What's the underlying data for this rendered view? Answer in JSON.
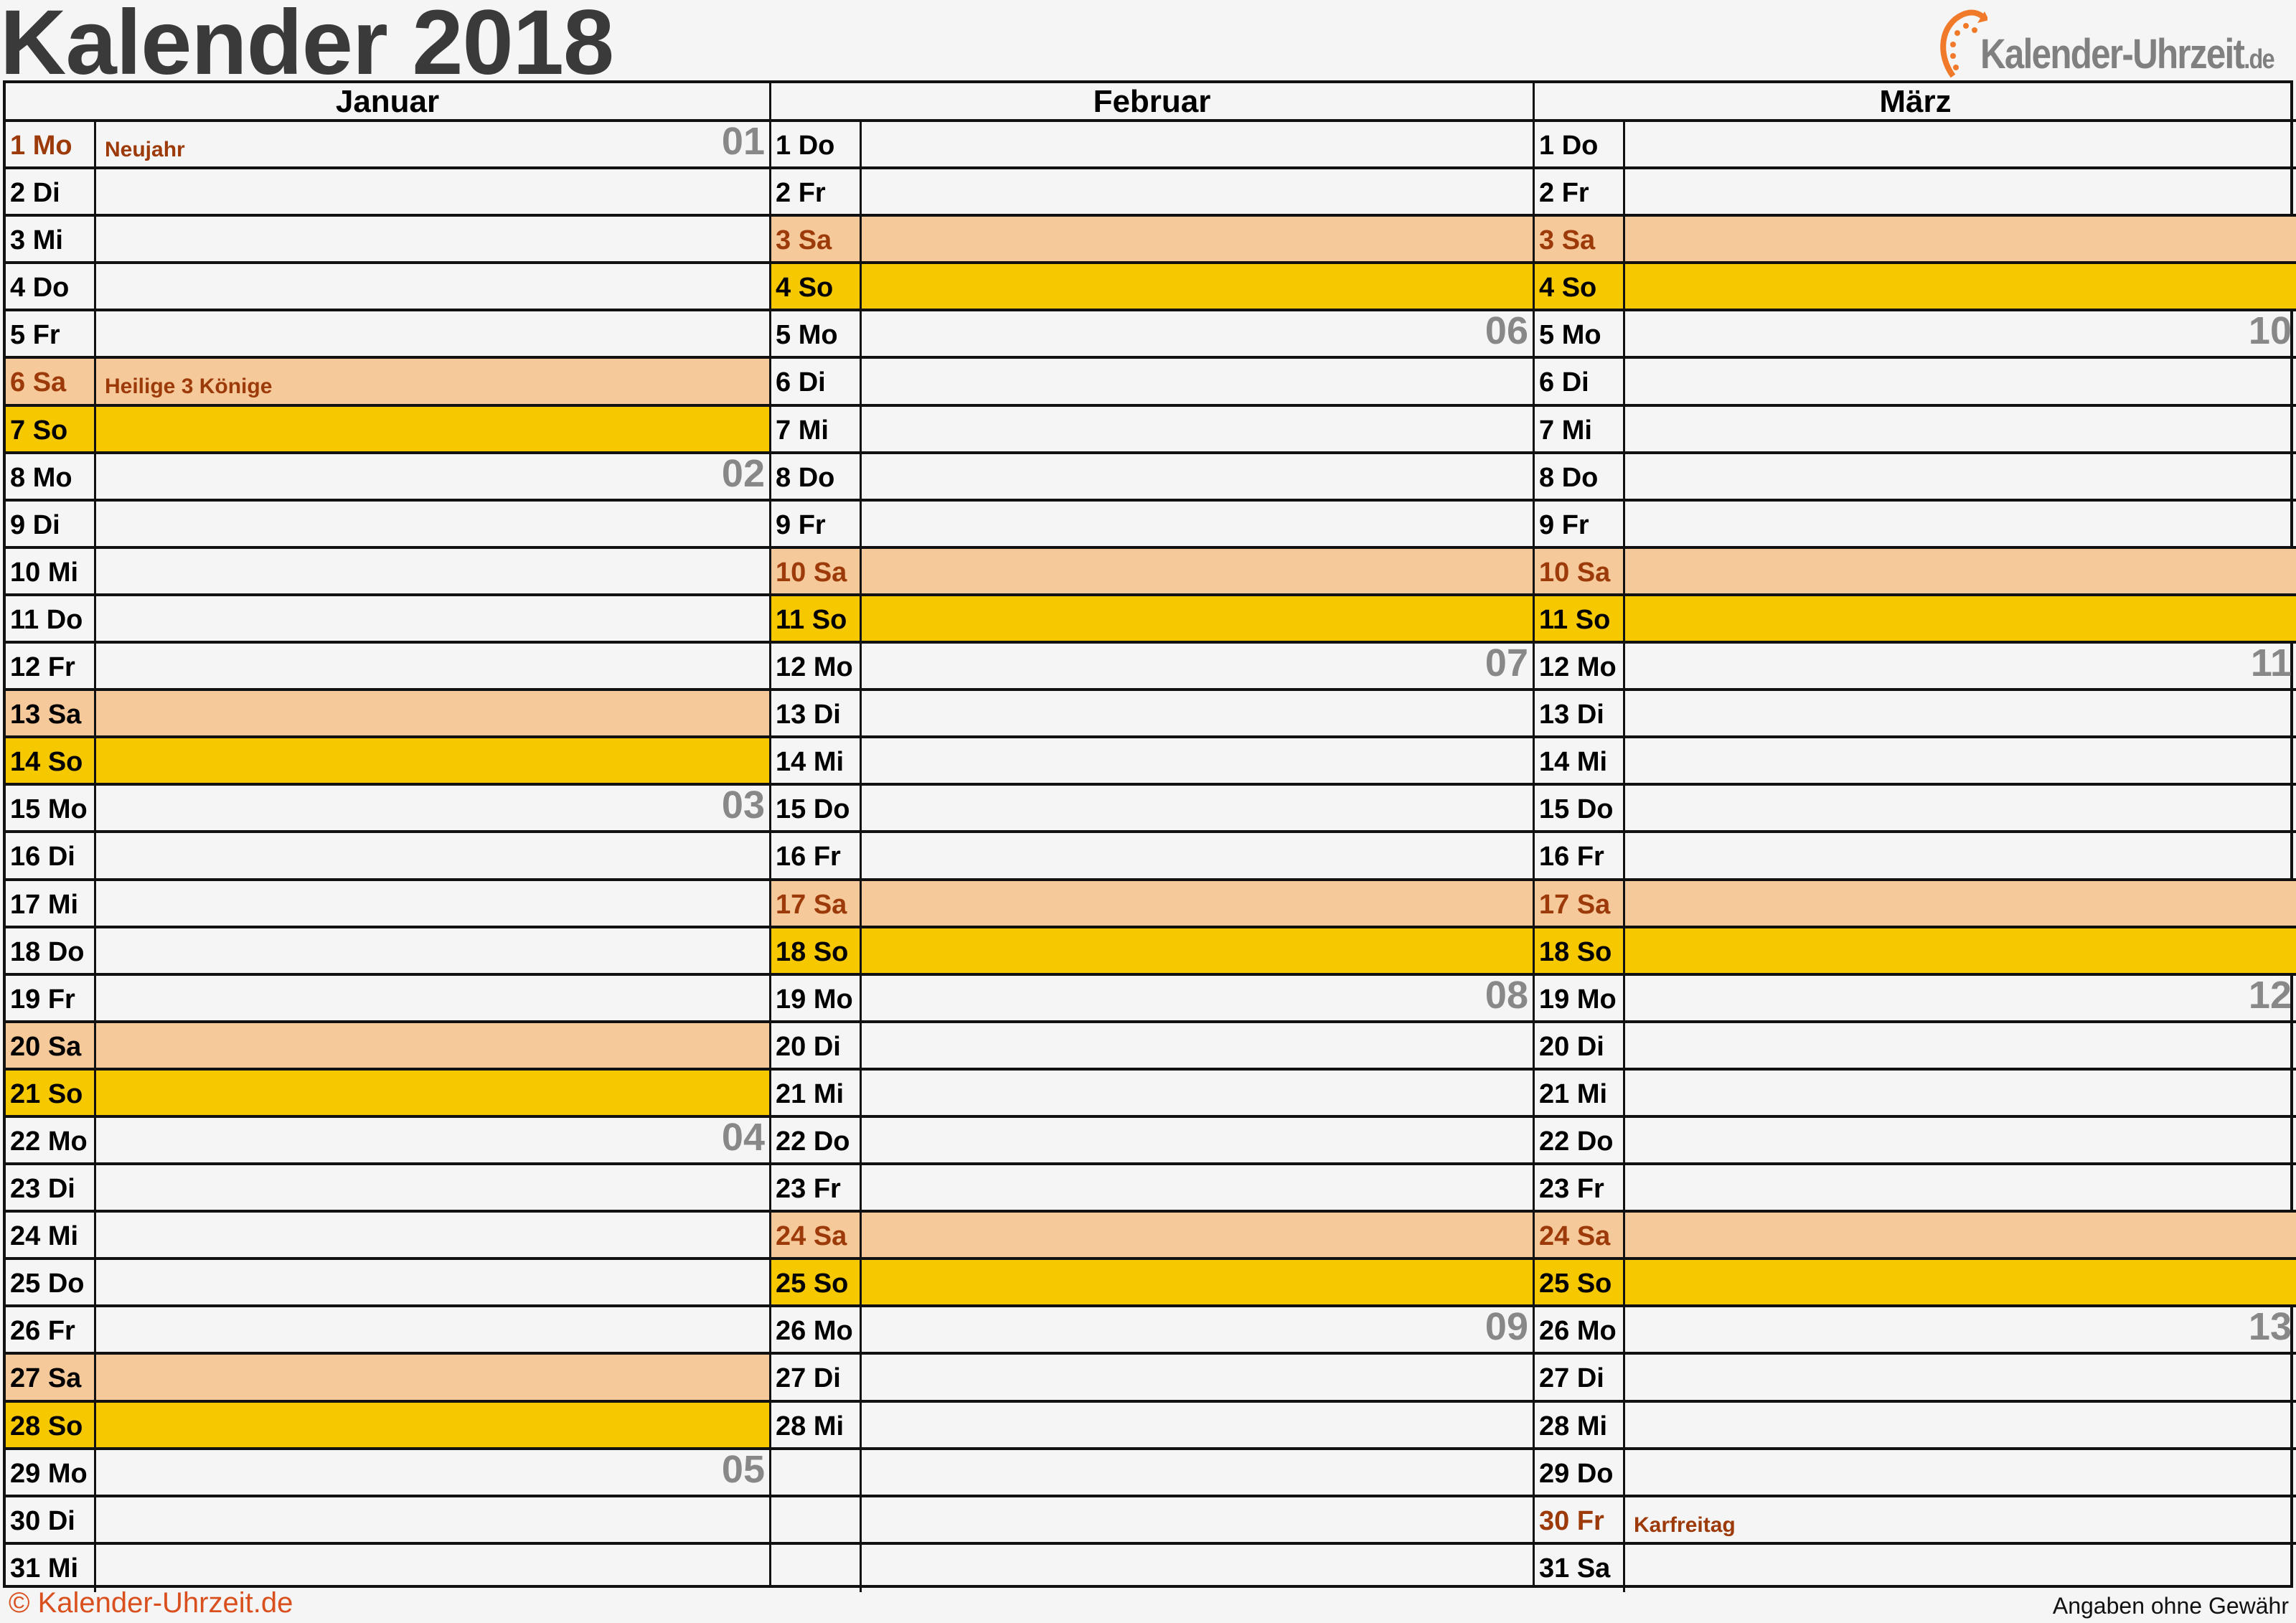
{
  "title": "Kalender 2018",
  "logo": {
    "text": "Kalender-Uhrzeit",
    "tld": ".de",
    "accent": "#f07a2a"
  },
  "footer": {
    "copyright": "© Kalender-Uhrzeit.de",
    "disclaimer": "Angaben ohne Gewähr"
  },
  "colors": {
    "saturday": "#f6c99a",
    "sunday": "#f5c800",
    "holiday_text": "#9c3a0a",
    "week_number": "#888888"
  },
  "months": [
    {
      "name": "Januar",
      "days": [
        {
          "l": "1 Mo",
          "k": "h",
          "n": "Neujahr",
          "w": "01"
        },
        {
          "l": "2 Di"
        },
        {
          "l": "3 Mi"
        },
        {
          "l": "4 Do"
        },
        {
          "l": "5 Fr"
        },
        {
          "l": "6 Sa",
          "k": "sar",
          "n": "Heilige 3 Könige"
        },
        {
          "l": "7 So",
          "k": "so"
        },
        {
          "l": "8 Mo",
          "w": "02"
        },
        {
          "l": "9 Di"
        },
        {
          "l": "10 Mi"
        },
        {
          "l": "11 Do"
        },
        {
          "l": "12 Fr"
        },
        {
          "l": "13 Sa",
          "k": "sa"
        },
        {
          "l": "14 So",
          "k": "so"
        },
        {
          "l": "15 Mo",
          "w": "03"
        },
        {
          "l": "16 Di"
        },
        {
          "l": "17 Mi"
        },
        {
          "l": "18 Do"
        },
        {
          "l": "19 Fr"
        },
        {
          "l": "20 Sa",
          "k": "sa"
        },
        {
          "l": "21 So",
          "k": "so"
        },
        {
          "l": "22 Mo",
          "w": "04"
        },
        {
          "l": "23 Di"
        },
        {
          "l": "24 Mi"
        },
        {
          "l": "25 Do"
        },
        {
          "l": "26 Fr"
        },
        {
          "l": "27 Sa",
          "k": "sa"
        },
        {
          "l": "28 So",
          "k": "so"
        },
        {
          "l": "29 Mo",
          "w": "05"
        },
        {
          "l": "30 Di"
        },
        {
          "l": "31 Mi"
        }
      ]
    },
    {
      "name": "Februar",
      "days": [
        {
          "l": "1 Do"
        },
        {
          "l": "2 Fr"
        },
        {
          "l": "3 Sa",
          "k": "sar"
        },
        {
          "l": "4 So",
          "k": "so"
        },
        {
          "l": "5 Mo",
          "w": "06"
        },
        {
          "l": "6 Di"
        },
        {
          "l": "7 Mi"
        },
        {
          "l": "8 Do"
        },
        {
          "l": "9 Fr"
        },
        {
          "l": "10 Sa",
          "k": "sar"
        },
        {
          "l": "11 So",
          "k": "so"
        },
        {
          "l": "12 Mo",
          "w": "07"
        },
        {
          "l": "13 Di"
        },
        {
          "l": "14 Mi"
        },
        {
          "l": "15 Do"
        },
        {
          "l": "16 Fr"
        },
        {
          "l": "17 Sa",
          "k": "sar"
        },
        {
          "l": "18 So",
          "k": "so"
        },
        {
          "l": "19 Mo",
          "w": "08"
        },
        {
          "l": "20 Di"
        },
        {
          "l": "21 Mi"
        },
        {
          "l": "22 Do"
        },
        {
          "l": "23 Fr"
        },
        {
          "l": "24 Sa",
          "k": "sar"
        },
        {
          "l": "25 So",
          "k": "so"
        },
        {
          "l": "26 Mo",
          "w": "09"
        },
        {
          "l": "27 Di"
        },
        {
          "l": "28 Mi"
        },
        {
          "l": ""
        },
        {
          "l": ""
        },
        {
          "l": ""
        }
      ]
    },
    {
      "name": "März",
      "days": [
        {
          "l": "1 Do"
        },
        {
          "l": "2 Fr"
        },
        {
          "l": "3 Sa",
          "k": "sar"
        },
        {
          "l": "4 So",
          "k": "so"
        },
        {
          "l": "5 Mo",
          "w": "10"
        },
        {
          "l": "6 Di"
        },
        {
          "l": "7 Mi"
        },
        {
          "l": "8 Do"
        },
        {
          "l": "9 Fr"
        },
        {
          "l": "10 Sa",
          "k": "sar"
        },
        {
          "l": "11 So",
          "k": "so"
        },
        {
          "l": "12 Mo",
          "w": "11"
        },
        {
          "l": "13 Di"
        },
        {
          "l": "14 Mi"
        },
        {
          "l": "15 Do"
        },
        {
          "l": "16 Fr"
        },
        {
          "l": "17 Sa",
          "k": "sar"
        },
        {
          "l": "18 So",
          "k": "so"
        },
        {
          "l": "19 Mo",
          "w": "12"
        },
        {
          "l": "20 Di"
        },
        {
          "l": "21 Mi"
        },
        {
          "l": "22 Do"
        },
        {
          "l": "23 Fr"
        },
        {
          "l": "24 Sa",
          "k": "sar"
        },
        {
          "l": "25 So",
          "k": "so"
        },
        {
          "l": "26 Mo",
          "w": "13"
        },
        {
          "l": "27 Di"
        },
        {
          "l": "28 Mi"
        },
        {
          "l": "29 Do"
        },
        {
          "l": "30 Fr",
          "k": "h",
          "n": "Karfreitag"
        },
        {
          "l": "31 Sa"
        }
      ]
    }
  ]
}
